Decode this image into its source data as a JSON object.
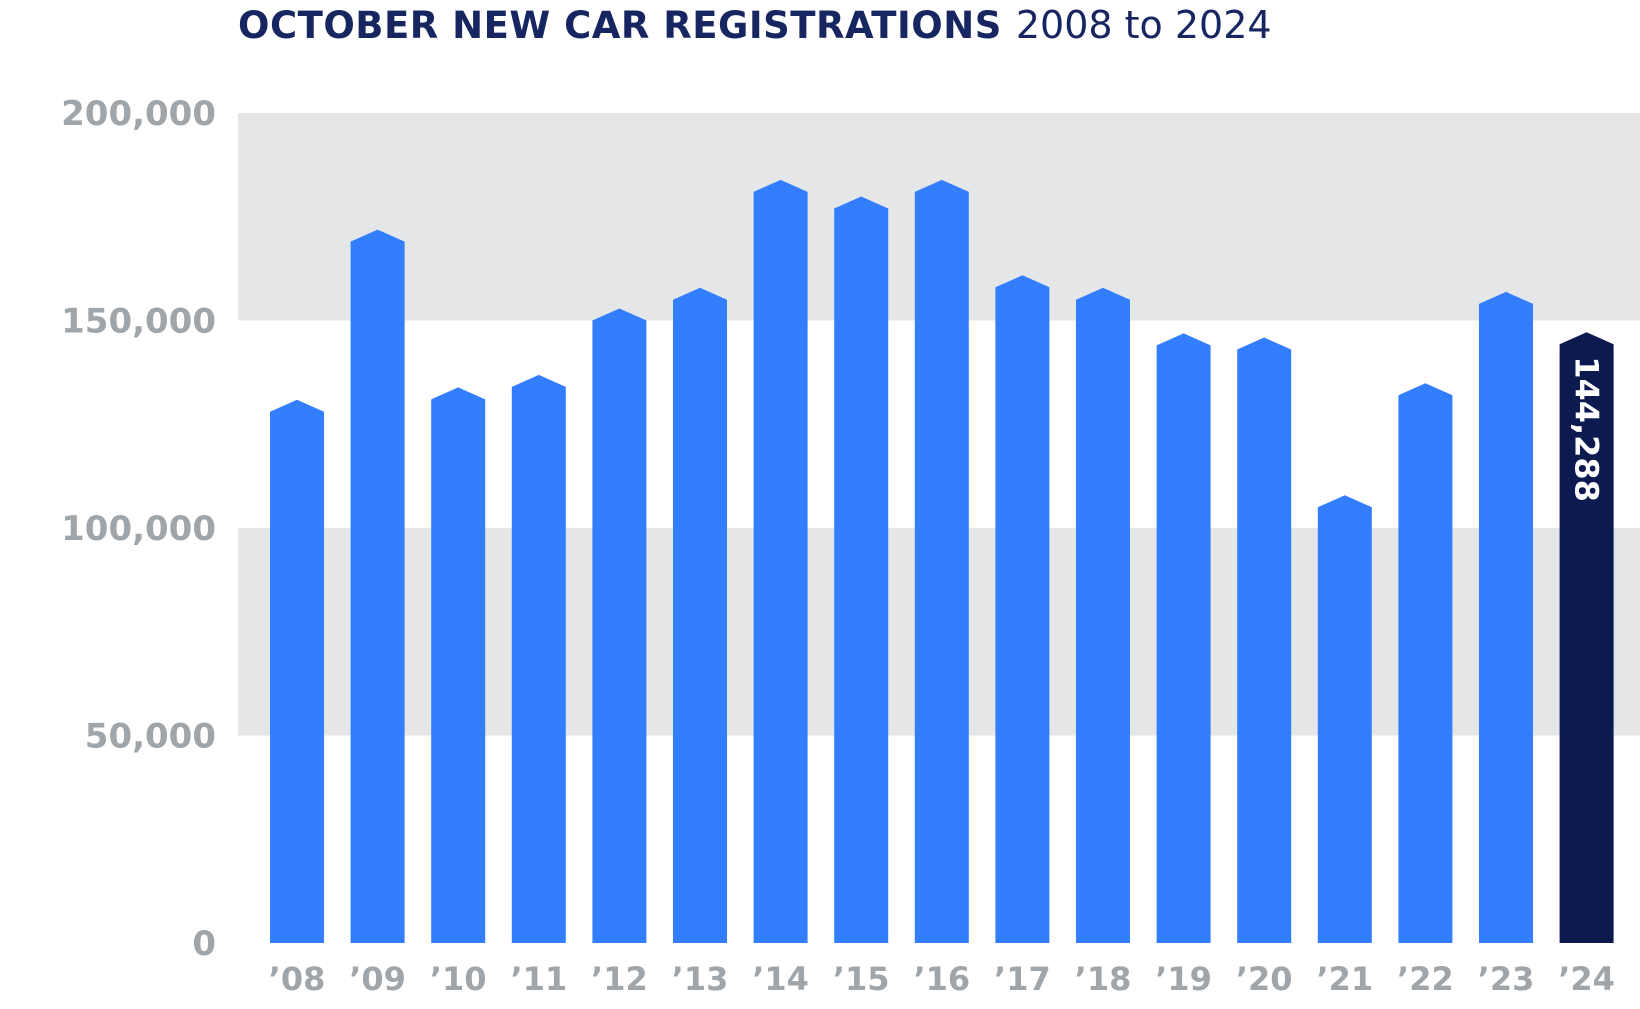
{
  "chart_data": {
    "type": "bar",
    "title": "OCTOBER NEW CAR REGISTRATIONS",
    "subtitle": "2008 to 2024",
    "categories": [
      "’08",
      "’09",
      "’10",
      "’11",
      "’12",
      "’13",
      "’14",
      "’15",
      "’16",
      "’17",
      "’18",
      "’19",
      "’20",
      "’21",
      "’22",
      "’23",
      "’24"
    ],
    "values": [
      128000,
      169000,
      131000,
      134000,
      150000,
      155000,
      181000,
      177000,
      181000,
      158000,
      155000,
      144000,
      143000,
      105000,
      132000,
      154000,
      144288
    ],
    "ylim": [
      0,
      200000
    ],
    "yticks": [
      0,
      50000,
      100000,
      150000,
      200000
    ],
    "ytick_labels": [
      "0",
      "50,000",
      "100,000",
      "150,000",
      "200,000"
    ],
    "data_labels": [
      {
        "index": 16,
        "text": "144,288"
      }
    ],
    "bands": [
      [
        50000,
        100000
      ],
      [
        150000,
        200000
      ]
    ],
    "grid": false,
    "legend": "none",
    "colors": {
      "bar": "#337eff",
      "highlight": "#0c1a4f",
      "band": "#e4e6e7",
      "title": "#172661",
      "tick": "#9fa5a9"
    }
  }
}
